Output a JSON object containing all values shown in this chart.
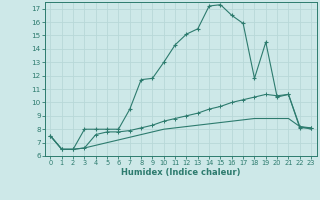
{
  "line1_x": [
    0,
    1,
    2,
    3,
    4,
    5,
    6,
    7,
    8,
    9,
    10,
    11,
    12,
    13,
    14,
    15,
    16,
    17,
    18,
    19,
    20,
    21,
    22,
    23
  ],
  "line1_y": [
    7.5,
    6.5,
    6.5,
    8.0,
    8.0,
    8.0,
    8.0,
    9.5,
    11.7,
    11.8,
    13.0,
    14.3,
    15.1,
    15.5,
    17.2,
    17.3,
    16.5,
    15.9,
    11.8,
    14.5,
    10.4,
    10.6,
    8.1,
    8.1
  ],
  "line2_x": [
    0,
    1,
    2,
    3,
    4,
    5,
    6,
    7,
    8,
    9,
    10,
    11,
    12,
    13,
    14,
    15,
    16,
    17,
    18,
    19,
    20,
    21,
    22,
    23
  ],
  "line2_y": [
    7.5,
    6.5,
    6.5,
    6.6,
    7.6,
    7.8,
    7.8,
    7.9,
    8.1,
    8.3,
    8.6,
    8.8,
    9.0,
    9.2,
    9.5,
    9.7,
    10.0,
    10.2,
    10.4,
    10.6,
    10.5,
    10.6,
    8.2,
    8.1
  ],
  "line3_x": [
    0,
    1,
    2,
    3,
    4,
    5,
    6,
    7,
    8,
    9,
    10,
    11,
    12,
    13,
    14,
    15,
    16,
    17,
    18,
    19,
    20,
    21,
    22,
    23
  ],
  "line3_y": [
    7.5,
    6.5,
    6.5,
    6.6,
    6.8,
    7.0,
    7.2,
    7.4,
    7.6,
    7.8,
    8.0,
    8.1,
    8.2,
    8.3,
    8.4,
    8.5,
    8.6,
    8.7,
    8.8,
    8.8,
    8.8,
    8.8,
    8.2,
    8.0
  ],
  "line_color": "#2d7b6e",
  "bg_color": "#cde8e8",
  "grid_color": "#b8d8d8",
  "xlabel": "Humidex (Indice chaleur)",
  "ylim": [
    6,
    17.5
  ],
  "xlim": [
    -0.5,
    23.5
  ],
  "yticks": [
    6,
    7,
    8,
    9,
    10,
    11,
    12,
    13,
    14,
    15,
    16,
    17
  ],
  "xticks": [
    0,
    1,
    2,
    3,
    4,
    5,
    6,
    7,
    8,
    9,
    10,
    11,
    12,
    13,
    14,
    15,
    16,
    17,
    18,
    19,
    20,
    21,
    22,
    23
  ]
}
